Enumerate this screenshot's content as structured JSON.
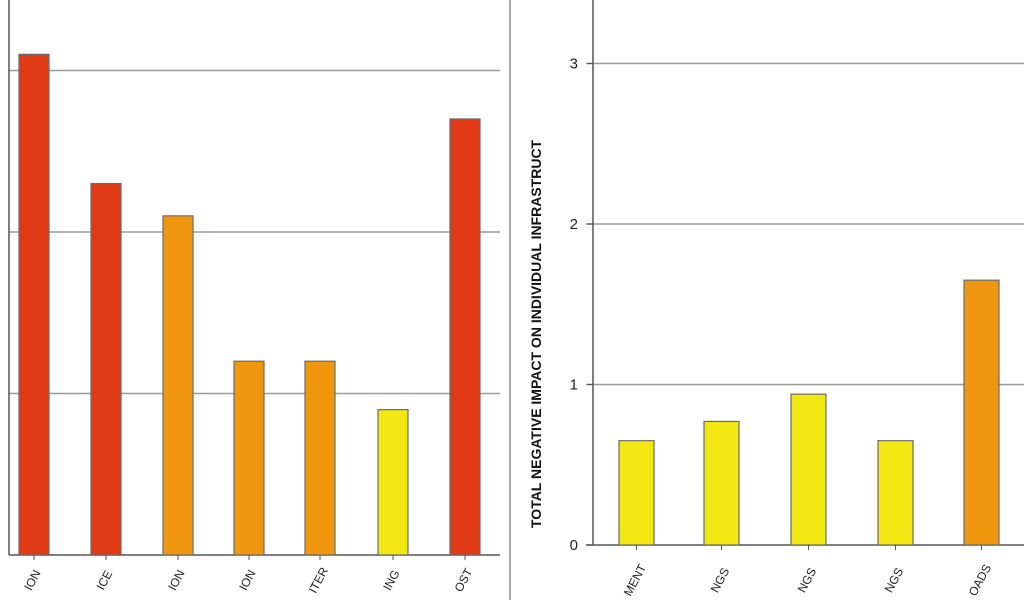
{
  "colors": {
    "high": "#e03a16",
    "medium": "#f0960f",
    "low": "#f3e812",
    "grid": "#9a9a9a",
    "axis": "#555555"
  },
  "chart_data": [
    {
      "type": "bar",
      "title": "",
      "xlabel": "",
      "ylabel": "",
      "categories": [
        "ION",
        "ICE",
        "ION",
        "ION",
        "ITER",
        "ING",
        "OST"
      ],
      "values": [
        3.1,
        2.3,
        2.1,
        1.2,
        1.2,
        0.9,
        2.7
      ],
      "bar_colors": [
        "high",
        "high",
        "medium",
        "medium",
        "medium",
        "low",
        "high"
      ],
      "ylim": [
        0,
        3.4
      ],
      "yticks": [],
      "gridlines": [
        1,
        2,
        3
      ],
      "grid": true
    },
    {
      "type": "bar",
      "title": "",
      "xlabel": "",
      "ylabel": "TOTAL NEGATIVE IMPACT ON INDIVIDUAL INFRASTRUCT",
      "categories": [
        "MENT",
        "NGS",
        "NGS",
        "NGS",
        "OADS"
      ],
      "values": [
        0.65,
        0.77,
        0.94,
        0.65,
        1.65
      ],
      "bar_colors": [
        "low",
        "low",
        "low",
        "low",
        "medium"
      ],
      "ylim": [
        0,
        3.4
      ],
      "yticks": [
        "0",
        "1",
        "2",
        "3"
      ],
      "gridlines": [
        1,
        2,
        3
      ],
      "grid": true
    }
  ]
}
